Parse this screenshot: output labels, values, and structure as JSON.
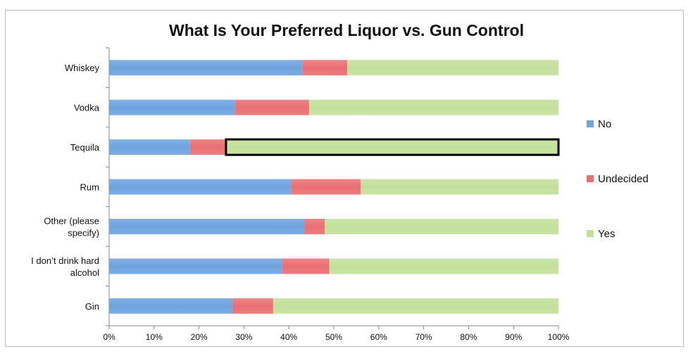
{
  "chart_data": {
    "type": "bar",
    "orientation": "horizontal",
    "stacked": true,
    "title": "What Is Your Preferred Liquor vs. Gun Control",
    "categories": [
      [
        "Whiskey"
      ],
      [
        "Vodka"
      ],
      [
        "Tequila"
      ],
      [
        "Rum"
      ],
      [
        "Other (please",
        "specify)"
      ],
      [
        "I don’t drink hard",
        "alcohol"
      ],
      [
        "Gin"
      ]
    ],
    "series": [
      {
        "name": "No",
        "color": "#6fa3df",
        "values": [
          43,
          28,
          18,
          40.5,
          43.5,
          38.5,
          27.5
        ]
      },
      {
        "name": "Undecided",
        "color": "#e96f72",
        "values": [
          10,
          16.5,
          8,
          15.5,
          4.5,
          10.5,
          9
        ]
      },
      {
        "name": "Yes",
        "color": "#c2e09a",
        "values": [
          47,
          55.5,
          74,
          44,
          52,
          51,
          63.5
        ]
      }
    ],
    "xlim": [
      0,
      100
    ],
    "xticks": [
      "0%",
      "10%",
      "20%",
      "30%",
      "40%",
      "50%",
      "60%",
      "70%",
      "80%",
      "90%",
      "100%"
    ],
    "grid": false,
    "legend_position": "right",
    "highlighted_bar": {
      "category": "Tequila",
      "series": "Yes"
    }
  }
}
